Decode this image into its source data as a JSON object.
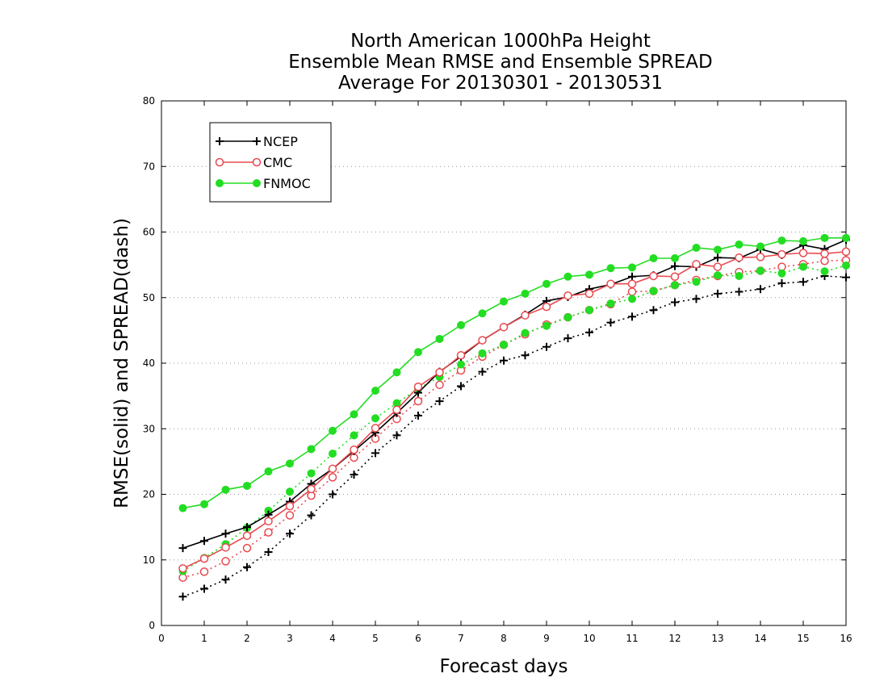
{
  "chart_data": {
    "type": "line",
    "title": [
      "North American 1000hPa Height",
      "Ensemble Mean RMSE and Ensemble SPREAD",
      "Average For 20130301 - 20130531"
    ],
    "xlabel": "Forecast days",
    "ylabel": "RMSE(solid) and SPREAD(dash)",
    "xlim": [
      0,
      16
    ],
    "ylim": [
      0,
      80
    ],
    "xticks": [
      0,
      1,
      2,
      3,
      4,
      5,
      6,
      7,
      8,
      9,
      10,
      11,
      12,
      13,
      14,
      15,
      16
    ],
    "yticks": [
      0,
      10,
      20,
      30,
      40,
      50,
      60,
      70,
      80
    ],
    "grid": "horizontal dotted",
    "legend_position": "top-left",
    "x": [
      0.5,
      1,
      1.5,
      2,
      2.5,
      3,
      3.5,
      4,
      4.5,
      5,
      5.5,
      6,
      6.5,
      7,
      7.5,
      8,
      8.5,
      9,
      9.5,
      10,
      10.5,
      11,
      11.5,
      12,
      12.5,
      13,
      13.5,
      14,
      14.5,
      15,
      15.5,
      16
    ],
    "series": [
      {
        "name": "NCEP",
        "color": "#000000",
        "marker": "plus",
        "rmse": [
          11.8,
          12.9,
          14.0,
          15.0,
          16.9,
          18.9,
          21.6,
          23.9,
          26.6,
          29.4,
          32.4,
          35.5,
          38.7,
          41.0,
          43.5,
          45.5,
          47.4,
          49.5,
          50.1,
          51.3,
          52.0,
          53.2,
          53.4,
          54.8,
          54.7,
          56.1,
          56.0,
          57.4,
          56.5,
          58.0,
          57.4,
          58.8
        ],
        "spread": [
          4.4,
          5.6,
          7.0,
          8.9,
          11.2,
          14.0,
          16.8,
          20.0,
          23.0,
          26.3,
          29.0,
          32.0,
          34.2,
          36.5,
          38.7,
          40.4,
          41.2,
          42.5,
          43.8,
          44.7,
          46.2,
          47.1,
          48.1,
          49.3,
          49.8,
          50.6,
          50.9,
          51.3,
          52.2,
          52.4,
          53.3,
          53.1
        ]
      },
      {
        "name": "CMC",
        "color": "#e8494f",
        "marker": "circle-open",
        "rmse": [
          8.7,
          10.2,
          11.9,
          13.7,
          15.9,
          18.2,
          20.8,
          23.9,
          26.8,
          30.1,
          32.9,
          36.4,
          38.6,
          41.2,
          43.5,
          45.5,
          47.3,
          48.6,
          50.3,
          50.6,
          52.1,
          52.1,
          53.3,
          53.2,
          55.1,
          54.7,
          56.1,
          56.2,
          56.6,
          56.8,
          56.7,
          57.0
        ],
        "spread": [
          7.3,
          8.2,
          9.8,
          11.8,
          14.2,
          16.8,
          19.8,
          22.6,
          25.6,
          28.5,
          31.5,
          34.2,
          36.7,
          38.9,
          41.0,
          42.8,
          44.4,
          45.9,
          47.0,
          48.1,
          49.0,
          50.9,
          51.0,
          51.9,
          52.7,
          53.3,
          53.9,
          54.1,
          54.7,
          55.1,
          55.6,
          55.7
        ]
      },
      {
        "name": "FNMOC",
        "color": "#22dd22",
        "marker": "circle-filled",
        "rmse": [
          17.9,
          18.5,
          20.7,
          21.3,
          23.5,
          24.7,
          26.9,
          29.7,
          32.2,
          35.8,
          38.6,
          41.7,
          43.7,
          45.8,
          47.6,
          49.4,
          50.6,
          52.1,
          53.2,
          53.5,
          54.5,
          54.6,
          56.0,
          56.0,
          57.6,
          57.3,
          58.1,
          57.8,
          58.7,
          58.6,
          59.1,
          59.1
        ],
        "spread": [
          8.3,
          10.3,
          12.4,
          14.9,
          17.5,
          20.4,
          23.2,
          26.2,
          29.0,
          31.6,
          33.9,
          36.1,
          37.9,
          39.8,
          41.5,
          42.8,
          44.6,
          45.7,
          47.0,
          48.1,
          49.1,
          49.8,
          51.0,
          51.9,
          52.4,
          53.4,
          53.3,
          54.1,
          53.7,
          54.7,
          54.0,
          54.9
        ]
      }
    ]
  }
}
